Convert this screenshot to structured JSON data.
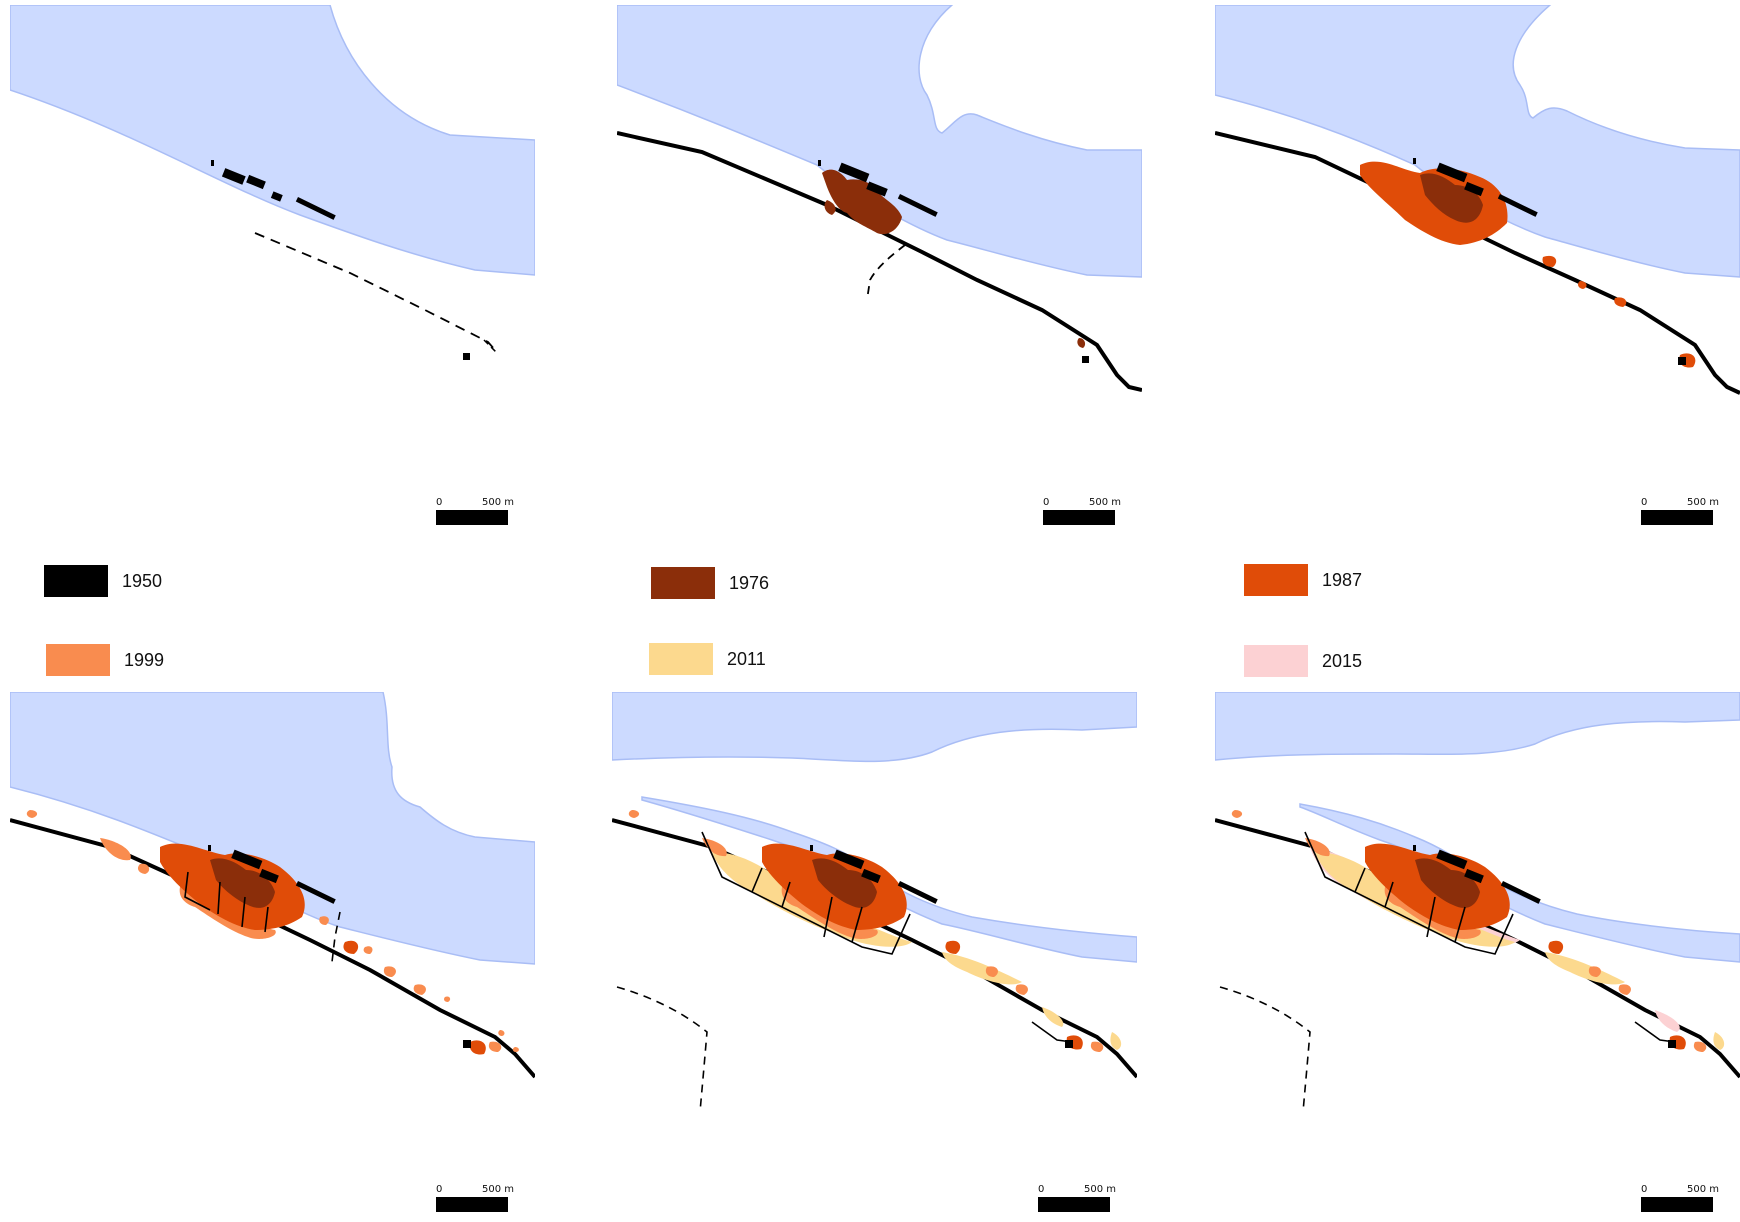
{
  "title_fragment": "",
  "colors": {
    "water": "#ccdaff",
    "water_edge": "#a9bdf5",
    "y1950": "#000000",
    "y1976": "#8b2e0a",
    "y1987": "#e04c08",
    "y1999": "#f98c4f",
    "y2011": "#fcd98e",
    "y2015": "#fcd1d3",
    "road": "#000000"
  },
  "legend": [
    {
      "year": "1950",
      "color": "#000000"
    },
    {
      "year": "1976",
      "color": "#8b2e0a"
    },
    {
      "year": "1987",
      "color": "#e04c08"
    },
    {
      "year": "1999",
      "color": "#f98c4f"
    },
    {
      "year": "2011",
      "color": "#fcd98e"
    },
    {
      "year": "2015",
      "color": "#fcd1d3"
    }
  ],
  "scale_bar": {
    "zero": "0",
    "distance": "500 m"
  },
  "panels": [
    {
      "id": "1950",
      "layers": [
        "1950"
      ]
    },
    {
      "id": "1976",
      "layers": [
        "1950",
        "1976"
      ]
    },
    {
      "id": "1987",
      "layers": [
        "1950",
        "1976",
        "1987"
      ]
    },
    {
      "id": "1999",
      "layers": [
        "1950",
        "1976",
        "1987",
        "1999"
      ]
    },
    {
      "id": "2011",
      "layers": [
        "1950",
        "1976",
        "1987",
        "1999",
        "2011"
      ]
    },
    {
      "id": "2015",
      "layers": [
        "1950",
        "1976",
        "1987",
        "1999",
        "2011",
        "2015"
      ]
    }
  ]
}
